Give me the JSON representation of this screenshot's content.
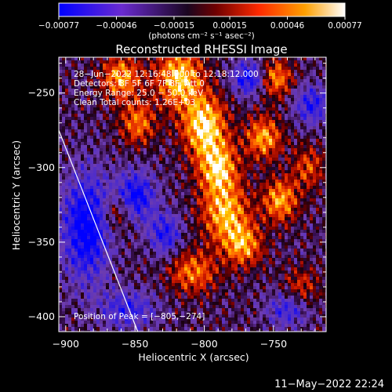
{
  "chart_data": {
    "type": "heatmap",
    "title": "Reconstructed RHESSI Image",
    "xlabel": "Heliocentric X (arcsec)",
    "ylabel": "Heliocentric Y (arcsec)",
    "xlim": [
      -905,
      -712
    ],
    "ylim": [
      -410,
      -226
    ],
    "x_ticks": [
      -900,
      -850,
      -800,
      -750
    ],
    "x_tick_labels": [
      "−900",
      "−850",
      "−800",
      "−750"
    ],
    "y_ticks": [
      -250,
      -300,
      -350,
      -400
    ],
    "y_tick_labels": [
      "−250",
      "−300",
      "−350",
      "−400"
    ],
    "colorbar": {
      "range": [
        -0.00077,
        0.00077
      ],
      "ticks": [
        -0.00077,
        -0.00046,
        -0.00015,
        0.00015,
        0.00046,
        0.00077
      ],
      "tick_labels": [
        "−0.00077",
        "−0.00046",
        "−0.00015",
        "0.00015",
        "0.00046",
        "0.00077"
      ],
      "unit_label": "(photons cm⁻² s⁻¹ asec⁻²)",
      "colors": [
        "#0000ff",
        "#6a2bd0",
        "#2a0a3a",
        "#7a0000",
        "#ff2a00",
        "#ff9a00",
        "#ffffff"
      ]
    },
    "annotations": {
      "line1": "28−Jun−2022 12:16:48.000 to 12:18:12.000",
      "line2": "Detectors: 3F 5F 6F 7F 8F, Att 0",
      "line3": "Energy Range: 25.0 − 50.0 keV",
      "line4": "Clean    Total counts: 1.26E+03",
      "peak": "Position of Peak = [−805,−274]"
    },
    "peak_position": [
      -805,
      -274
    ],
    "limb_line": [
      [
        -905,
        -275
      ],
      [
        -848,
        -410
      ]
    ],
    "hot_regions": [
      {
        "x": -818,
        "y": -240,
        "sx": 12,
        "sy": 14,
        "amp": 1.0
      },
      {
        "x": -800,
        "y": -272,
        "sx": 11,
        "sy": 14,
        "amp": 1.1
      },
      {
        "x": -790,
        "y": -300,
        "sx": 10,
        "sy": 12,
        "amp": 0.95
      },
      {
        "x": -785,
        "y": -330,
        "sx": 12,
        "sy": 14,
        "amp": 0.9
      },
      {
        "x": -772,
        "y": -352,
        "sx": 10,
        "sy": 10,
        "amp": 0.8
      },
      {
        "x": -757,
        "y": -280,
        "sx": 9,
        "sy": 10,
        "amp": 0.85
      },
      {
        "x": -745,
        "y": -322,
        "sx": 9,
        "sy": 10,
        "amp": 0.85
      },
      {
        "x": -748,
        "y": -240,
        "sx": 8,
        "sy": 9,
        "amp": 0.75
      },
      {
        "x": -860,
        "y": -240,
        "sx": 10,
        "sy": 10,
        "amp": 0.85
      },
      {
        "x": -848,
        "y": -270,
        "sx": 9,
        "sy": 10,
        "amp": 0.7
      },
      {
        "x": -808,
        "y": -370,
        "sx": 12,
        "sy": 10,
        "amp": 0.7
      },
      {
        "x": -862,
        "y": -330,
        "sx": 8,
        "sy": 9,
        "amp": 0.55
      },
      {
        "x": -725,
        "y": -300,
        "sx": 8,
        "sy": 10,
        "amp": 0.55
      },
      {
        "x": -730,
        "y": -380,
        "sx": 9,
        "sy": 9,
        "amp": 0.45
      }
    ],
    "cold_regions": [
      {
        "x": -885,
        "y": -340,
        "sx": 12,
        "sy": 25,
        "amp": 1.0
      },
      {
        "x": -850,
        "y": -320,
        "sx": 10,
        "sy": 12,
        "amp": 0.9
      },
      {
        "x": -828,
        "y": -345,
        "sx": 8,
        "sy": 10,
        "amp": 0.7
      },
      {
        "x": -768,
        "y": -240,
        "sx": 8,
        "sy": 8,
        "amp": 0.8
      },
      {
        "x": -722,
        "y": -258,
        "sx": 9,
        "sy": 9,
        "amp": 0.7
      },
      {
        "x": -740,
        "y": -395,
        "sx": 10,
        "sy": 8,
        "amp": 0.6
      },
      {
        "x": -855,
        "y": -395,
        "sx": 14,
        "sy": 9,
        "amp": 0.6
      }
    ]
  },
  "footer": {
    "timestamp": "11−May−2022 22:24"
  }
}
